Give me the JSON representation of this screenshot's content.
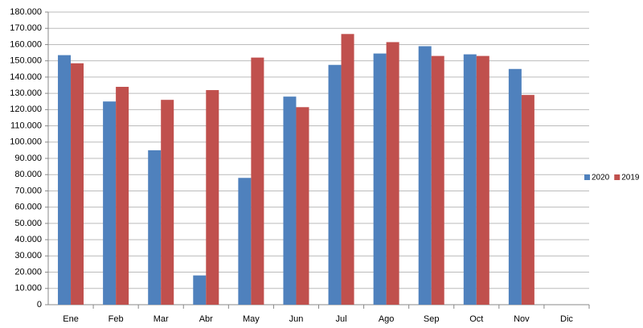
{
  "chart_data": {
    "type": "bar",
    "categories": [
      "Ene",
      "Feb",
      "Mar",
      "Abr",
      "May",
      "Jun",
      "Jul",
      "Ago",
      "Sep",
      "Oct",
      "Nov",
      "Dic"
    ],
    "series": [
      {
        "name": "2020",
        "color": "#4f81bd",
        "values": [
          153500,
          125000,
          95000,
          18000,
          78000,
          128000,
          147500,
          154500,
          159000,
          154000,
          145000,
          null
        ]
      },
      {
        "name": "2019",
        "color": "#c0504d",
        "values": [
          148500,
          134000,
          126000,
          132000,
          152000,
          121500,
          166500,
          161500,
          153000,
          153000,
          129000,
          null
        ]
      }
    ],
    "ylim": [
      0,
      180000
    ],
    "yticks": [
      0,
      {
        "value": 10000,
        "label": "10.000"
      },
      {
        "value": 20000,
        "label": "20.000"
      },
      {
        "value": 30000,
        "label": "30.000"
      },
      {
        "value": 40000,
        "label": "40.000"
      },
      {
        "value": 50000,
        "label": "50.000"
      },
      {
        "value": 60000,
        "label": "60.000"
      },
      {
        "value": 70000,
        "label": "70.000"
      },
      {
        "value": 80000,
        "label": "80.000"
      },
      {
        "value": 90000,
        "label": "90.000"
      },
      {
        "value": 100000,
        "label": "100.000"
      },
      {
        "value": 110000,
        "label": "110.000"
      },
      {
        "value": 120000,
        "label": "120.000"
      },
      {
        "value": 130000,
        "label": "130.000"
      },
      {
        "value": 140000,
        "label": "140.000"
      },
      {
        "value": 150000,
        "label": "150.000"
      },
      {
        "value": 160000,
        "label": "160.000"
      },
      {
        "value": 170000,
        "label": "170.000"
      },
      {
        "value": 180000,
        "label": "180.000"
      }
    ],
    "grid": true,
    "legend": "right"
  }
}
